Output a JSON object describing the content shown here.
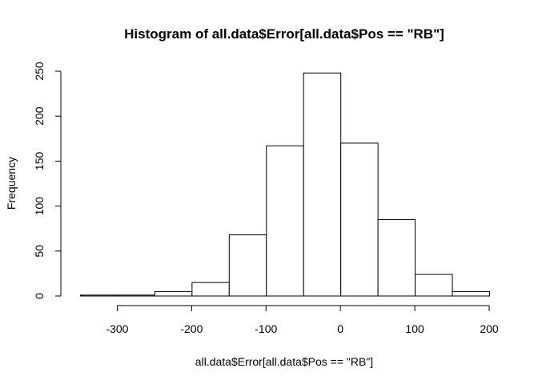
{
  "chart_data": {
    "type": "bar",
    "subtype": "histogram",
    "title": "Histogram of all.data$Error[all.data$Pos == \"RB\"]",
    "xlabel": "all.data$Error[all.data$Pos == \"RB\"]",
    "ylabel": "Frequency",
    "bins": [
      {
        "start": -350,
        "end": -300,
        "count": 1
      },
      {
        "start": -300,
        "end": -250,
        "count": 1
      },
      {
        "start": -250,
        "end": -200,
        "count": 5
      },
      {
        "start": -200,
        "end": -150,
        "count": 15
      },
      {
        "start": -150,
        "end": -100,
        "count": 68
      },
      {
        "start": -100,
        "end": -50,
        "count": 167
      },
      {
        "start": -50,
        "end": 0,
        "count": 248
      },
      {
        "start": 0,
        "end": 50,
        "count": 170
      },
      {
        "start": 50,
        "end": 100,
        "count": 85
      },
      {
        "start": 100,
        "end": 150,
        "count": 24
      },
      {
        "start": 150,
        "end": 200,
        "count": 5
      }
    ],
    "xticks": [
      -300,
      -200,
      -100,
      0,
      100,
      200
    ],
    "yticks": [
      0,
      50,
      100,
      150,
      200,
      250
    ],
    "xlim": [
      -350,
      200
    ],
    "ylim": [
      0,
      250
    ],
    "grid": false,
    "bar_fill": "#ffffff",
    "bar_stroke": "#000000"
  }
}
